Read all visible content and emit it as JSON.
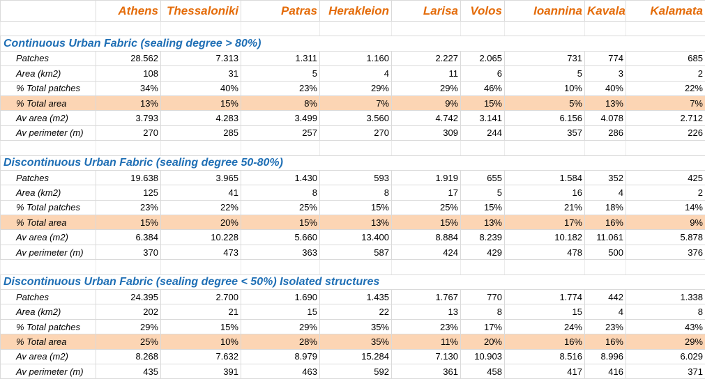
{
  "columns": [
    "Athens",
    "Thessaloniki",
    "Patras",
    "Herakleion",
    "Larisa",
    "Volos",
    "Ioannina",
    "Kavala",
    "Kalamata"
  ],
  "sections": [
    {
      "title": "Continuous Urban Fabric (sealing degree > 80%)",
      "rows": [
        {
          "label": "Patches",
          "values": [
            "28.562",
            "7.313",
            "1.311",
            "1.160",
            "2.227",
            "2.065",
            "731",
            "774",
            "685"
          ],
          "highlight": false
        },
        {
          "label": "Area (km2)",
          "values": [
            "108",
            "31",
            "5",
            "4",
            "11",
            "6",
            "5",
            "3",
            "2"
          ],
          "highlight": false
        },
        {
          "label": "% Total patches",
          "values": [
            "34%",
            "40%",
            "23%",
            "29%",
            "29%",
            "46%",
            "10%",
            "40%",
            "22%"
          ],
          "highlight": false
        },
        {
          "label": "% Total area",
          "values": [
            "13%",
            "15%",
            "8%",
            "7%",
            "9%",
            "15%",
            "5%",
            "13%",
            "7%"
          ],
          "highlight": true
        },
        {
          "label": "Av area (m2)",
          "values": [
            "3.793",
            "4.283",
            "3.499",
            "3.560",
            "4.742",
            "3.141",
            "6.156",
            "4.078",
            "2.712"
          ],
          "highlight": false
        },
        {
          "label": "Av perimeter (m)",
          "values": [
            "270",
            "285",
            "257",
            "270",
            "309",
            "244",
            "357",
            "286",
            "226"
          ],
          "highlight": false
        }
      ]
    },
    {
      "title": "Discontinuous Urban Fabric (sealing degree 50-80%)",
      "rows": [
        {
          "label": "Patches",
          "values": [
            "19.638",
            "3.965",
            "1.430",
            "593",
            "1.919",
            "655",
            "1.584",
            "352",
            "425"
          ],
          "highlight": false
        },
        {
          "label": "Area (km2)",
          "values": [
            "125",
            "41",
            "8",
            "8",
            "17",
            "5",
            "16",
            "4",
            "2"
          ],
          "highlight": false
        },
        {
          "label": "% Total patches",
          "values": [
            "23%",
            "22%",
            "25%",
            "15%",
            "25%",
            "15%",
            "21%",
            "18%",
            "14%"
          ],
          "highlight": false
        },
        {
          "label": "% Total area",
          "values": [
            "15%",
            "20%",
            "15%",
            "13%",
            "15%",
            "13%",
            "17%",
            "16%",
            "9%"
          ],
          "highlight": true
        },
        {
          "label": "Av area (m2)",
          "values": [
            "6.384",
            "10.228",
            "5.660",
            "13.400",
            "8.884",
            "8.239",
            "10.182",
            "11.061",
            "5.878"
          ],
          "highlight": false
        },
        {
          "label": "Av perimeter (m)",
          "values": [
            "370",
            "473",
            "363",
            "587",
            "424",
            "429",
            "478",
            "500",
            "376"
          ],
          "highlight": false
        }
      ]
    },
    {
      "title": "Discontinuous Urban Fabric (sealing degree < 50%) Isolated structures",
      "rows": [
        {
          "label": "Patches",
          "values": [
            "24.395",
            "2.700",
            "1.690",
            "1.435",
            "1.767",
            "770",
            "1.774",
            "442",
            "1.338"
          ],
          "highlight": false
        },
        {
          "label": "Area (km2)",
          "values": [
            "202",
            "21",
            "15",
            "22",
            "13",
            "8",
            "15",
            "4",
            "8"
          ],
          "highlight": false
        },
        {
          "label": "% Total patches",
          "values": [
            "29%",
            "15%",
            "29%",
            "35%",
            "23%",
            "17%",
            "24%",
            "23%",
            "43%"
          ],
          "highlight": false
        },
        {
          "label": "% Total area",
          "values": [
            "25%",
            "10%",
            "28%",
            "35%",
            "11%",
            "20%",
            "16%",
            "16%",
            "29%"
          ],
          "highlight": true
        },
        {
          "label": "Av area (m2)",
          "values": [
            "8.268",
            "7.632",
            "8.979",
            "15.284",
            "7.130",
            "10.903",
            "8.516",
            "8.996",
            "6.029"
          ],
          "highlight": false
        },
        {
          "label": "Av perimeter (m)",
          "values": [
            "435",
            "391",
            "463",
            "592",
            "361",
            "458",
            "417",
            "416",
            "371"
          ],
          "highlight": false
        }
      ]
    }
  ]
}
